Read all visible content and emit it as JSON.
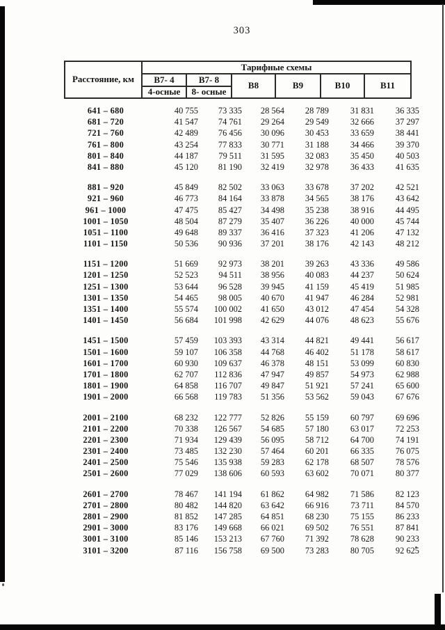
{
  "page": {
    "number": "303"
  },
  "table": {
    "distance_header": "Расстояние, км",
    "schemes_header": "Тарифные схемы",
    "col_headers": [
      "В7- 4",
      "В7- 8",
      "В8",
      "В9",
      "В10",
      "В11"
    ],
    "sub_headers": [
      "4-осные",
      "8- осные"
    ],
    "groups": [
      {
        "rows": [
          {
            "range": "641 – 680",
            "values": [
              "40 755",
              "73 335",
              "28 564",
              "28 789",
              "31 831",
              "36 335"
            ]
          },
          {
            "range": "681 – 720",
            "values": [
              "41 547",
              "74 761",
              "29 264",
              "29 549",
              "32 666",
              "37 297"
            ]
          },
          {
            "range": "721 – 760",
            "values": [
              "42 489",
              "76 456",
              "30 096",
              "30 453",
              "33 659",
              "38 441"
            ]
          },
          {
            "range": "761 – 800",
            "values": [
              "43 254",
              "77 833",
              "30 771",
              "31 188",
              "34 466",
              "39 370"
            ]
          },
          {
            "range": "801 – 840",
            "values": [
              "44 187",
              "79 511",
              "31 595",
              "32 083",
              "35 450",
              "40 503"
            ]
          },
          {
            "range": "841 – 880",
            "values": [
              "45 120",
              "81 190",
              "32 419",
              "32 978",
              "36 433",
              "41 635"
            ]
          }
        ]
      },
      {
        "rows": [
          {
            "range": "881 – 920",
            "values": [
              "45 849",
              "82 502",
              "33 063",
              "33 678",
              "37 202",
              "42 521"
            ]
          },
          {
            "range": "921 – 960",
            "values": [
              "46 773",
              "84 164",
              "33 878",
              "34 565",
              "38 176",
              "43 642"
            ]
          },
          {
            "range": "961 – 1000",
            "values": [
              "47 475",
              "85 427",
              "34 498",
              "35 238",
              "38 916",
              "44 495"
            ]
          },
          {
            "range": "1001 – 1050",
            "values": [
              "48 504",
              "87 279",
              "35 407",
              "36 226",
              "40 000",
              "45 744"
            ]
          },
          {
            "range": "1051 – 1100",
            "values": [
              "49 648",
              "89 337",
              "36 416",
              "37 323",
              "41 206",
              "47 132"
            ]
          },
          {
            "range": "1101 – 1150",
            "values": [
              "50 536",
              "90 936",
              "37 201",
              "38 176",
              "42 143",
              "48 212"
            ]
          }
        ]
      },
      {
        "rows": [
          {
            "range": "1151 – 1200",
            "values": [
              "51 669",
              "92 973",
              "38 201",
              "39 263",
              "43 336",
              "49 586"
            ]
          },
          {
            "range": "1201 – 1250",
            "values": [
              "52 523",
              "94 511",
              "38 956",
              "40 083",
              "44 237",
              "50 624"
            ]
          },
          {
            "range": "1251 – 1300",
            "values": [
              "53 644",
              "96 528",
              "39 945",
              "41 159",
              "45 419",
              "51 985"
            ]
          },
          {
            "range": "1301 – 1350",
            "values": [
              "54 465",
              "98 005",
              "40 670",
              "41 947",
              "46 284",
              "52 981"
            ]
          },
          {
            "range": "1351 – 1400",
            "values": [
              "55 574",
              "100 002",
              "41 650",
              "43 012",
              "47 454",
              "54 328"
            ]
          },
          {
            "range": "1401 – 1450",
            "values": [
              "56 684",
              "101 998",
              "42 629",
              "44 076",
              "48 623",
              "55 676"
            ]
          }
        ]
      },
      {
        "rows": [
          {
            "range": "1451 – 1500",
            "values": [
              "57 459",
              "103 393",
              "43 314",
              "44 821",
              "49 441",
              "56 617"
            ]
          },
          {
            "range": "1501 – 1600",
            "values": [
              "59 107",
              "106 358",
              "44 768",
              "46 402",
              "51 178",
              "58 617"
            ]
          },
          {
            "range": "1601 – 1700",
            "values": [
              "60 930",
              "109 637",
              "46 378",
              "48 151",
              "53 099",
              "60 830"
            ]
          },
          {
            "range": "1701 – 1800",
            "values": [
              "62 707",
              "112 836",
              "47 947",
              "49 857",
              "54 973",
              "62 988"
            ]
          },
          {
            "range": "1801 – 1900",
            "values": [
              "64 858",
              "116 707",
              "49 847",
              "51 921",
              "57 241",
              "65 600"
            ]
          },
          {
            "range": "1901 – 2000",
            "values": [
              "66 568",
              "119 783",
              "51 356",
              "53 562",
              "59 043",
              "67 676"
            ]
          }
        ]
      },
      {
        "rows": [
          {
            "range": "2001 – 2100",
            "values": [
              "68 232",
              "122 777",
              "52 826",
              "55 159",
              "60 797",
              "69 696"
            ]
          },
          {
            "range": "2101 – 2200",
            "values": [
              "70 338",
              "126 567",
              "54 685",
              "57 180",
              "63 017",
              "72 253"
            ]
          },
          {
            "range": "2201 – 2300",
            "values": [
              "71 934",
              "129 439",
              "56 095",
              "58 712",
              "64 700",
              "74 191"
            ]
          },
          {
            "range": "2301 – 2400",
            "values": [
              "73 485",
              "132 230",
              "57 464",
              "60 201",
              "66 335",
              "76 075"
            ]
          },
          {
            "range": "2401 – 2500",
            "values": [
              "75 546",
              "135 938",
              "59 283",
              "62 178",
              "68 507",
              "78 576"
            ]
          },
          {
            "range": "2501 – 2600",
            "values": [
              "77 029",
              "138 606",
              "60 593",
              "63 602",
              "70 071",
              "80 377"
            ]
          }
        ]
      },
      {
        "rows": [
          {
            "range": "2601 – 2700",
            "values": [
              "78 467",
              "141 194",
              "61 862",
              "64 982",
              "71 586",
              "82 123"
            ]
          },
          {
            "range": "2701 – 2800",
            "values": [
              "80 482",
              "144 820",
              "63 642",
              "66 916",
              "73 711",
              "84 570"
            ]
          },
          {
            "range": "2801 – 2900",
            "values": [
              "81 852",
              "147 285",
              "64 851",
              "68 230",
              "75 155",
              "86 233"
            ]
          },
          {
            "range": "2901 – 3000",
            "values": [
              "83 176",
              "149 668",
              "66 021",
              "69 502",
              "76 551",
              "87 841"
            ]
          },
          {
            "range": "3001 – 3100",
            "values": [
              "85 146",
              "153 213",
              "67 760",
              "71 392",
              "78 628",
              "90 233"
            ]
          },
          {
            "range": "3101 – 3200",
            "values": [
              "87 116",
              "156 758",
              "69 500",
              "73 283",
              "80 705",
              "92 625"
            ]
          }
        ]
      }
    ]
  }
}
